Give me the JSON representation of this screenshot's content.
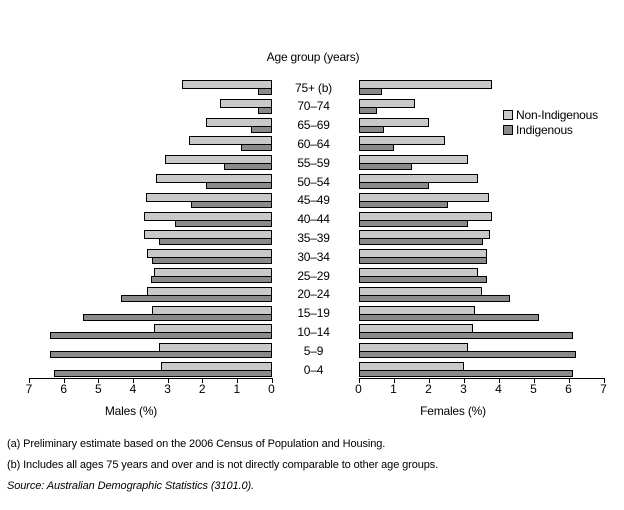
{
  "chart_data": {
    "type": "bar",
    "subtype": "population_pyramid",
    "title": "Age group (years)",
    "xlabel_left": "Males (%)",
    "xlabel_right": "Females (%)",
    "xlim": [
      0,
      7
    ],
    "x_ticks_left": [
      7,
      6,
      5,
      4,
      3,
      2,
      1,
      0
    ],
    "x_ticks_right": [
      0,
      1,
      2,
      3,
      4,
      5,
      6,
      7
    ],
    "grid": false,
    "legend_position": "right",
    "categories": [
      "75+ (b)",
      "70–74",
      "65–69",
      "60–64",
      "55–59",
      "50–54",
      "45–49",
      "40–44",
      "35–39",
      "30–34",
      "25–29",
      "20–24",
      "15–19",
      "10–14",
      "5–9",
      "0–4"
    ],
    "series": [
      {
        "name": "Non-Indigenous",
        "side": "males",
        "color": "#c9c9c9",
        "values": [
          2.6,
          1.5,
          1.9,
          2.4,
          3.1,
          3.35,
          3.65,
          3.7,
          3.7,
          3.6,
          3.4,
          3.6,
          3.45,
          3.4,
          3.25,
          3.2
        ]
      },
      {
        "name": "Indigenous",
        "side": "males",
        "color": "#8a8a8a",
        "values": [
          0.4,
          0.4,
          0.6,
          0.9,
          1.4,
          1.9,
          2.35,
          2.8,
          3.25,
          3.45,
          3.5,
          4.35,
          5.45,
          6.4,
          6.4,
          6.3
        ]
      },
      {
        "name": "Non-Indigenous",
        "side": "females",
        "color": "#c9c9c9",
        "values": [
          3.8,
          1.6,
          2.0,
          2.45,
          3.1,
          3.4,
          3.7,
          3.8,
          3.75,
          3.65,
          3.4,
          3.5,
          3.3,
          3.25,
          3.1,
          3.0
        ]
      },
      {
        "name": "Indigenous",
        "side": "females",
        "color": "#8a8a8a",
        "values": [
          0.65,
          0.5,
          0.7,
          1.0,
          1.5,
          2.0,
          2.55,
          3.1,
          3.55,
          3.65,
          3.65,
          4.3,
          5.15,
          6.1,
          6.2,
          6.1
        ]
      }
    ],
    "legend": [
      {
        "label": "Non-Indigenous",
        "color": "#c9c9c9"
      },
      {
        "label": "Indigenous",
        "color": "#8a8a8a"
      }
    ]
  },
  "footnotes": [
    "(a) Preliminary estimate based on the 2006 Census of Population and Housing.",
    "(b) Includes all ages 75 years and over and is not directly comparable to other age groups.",
    "Source: Australian Demographic Statistics (3101.0)."
  ]
}
